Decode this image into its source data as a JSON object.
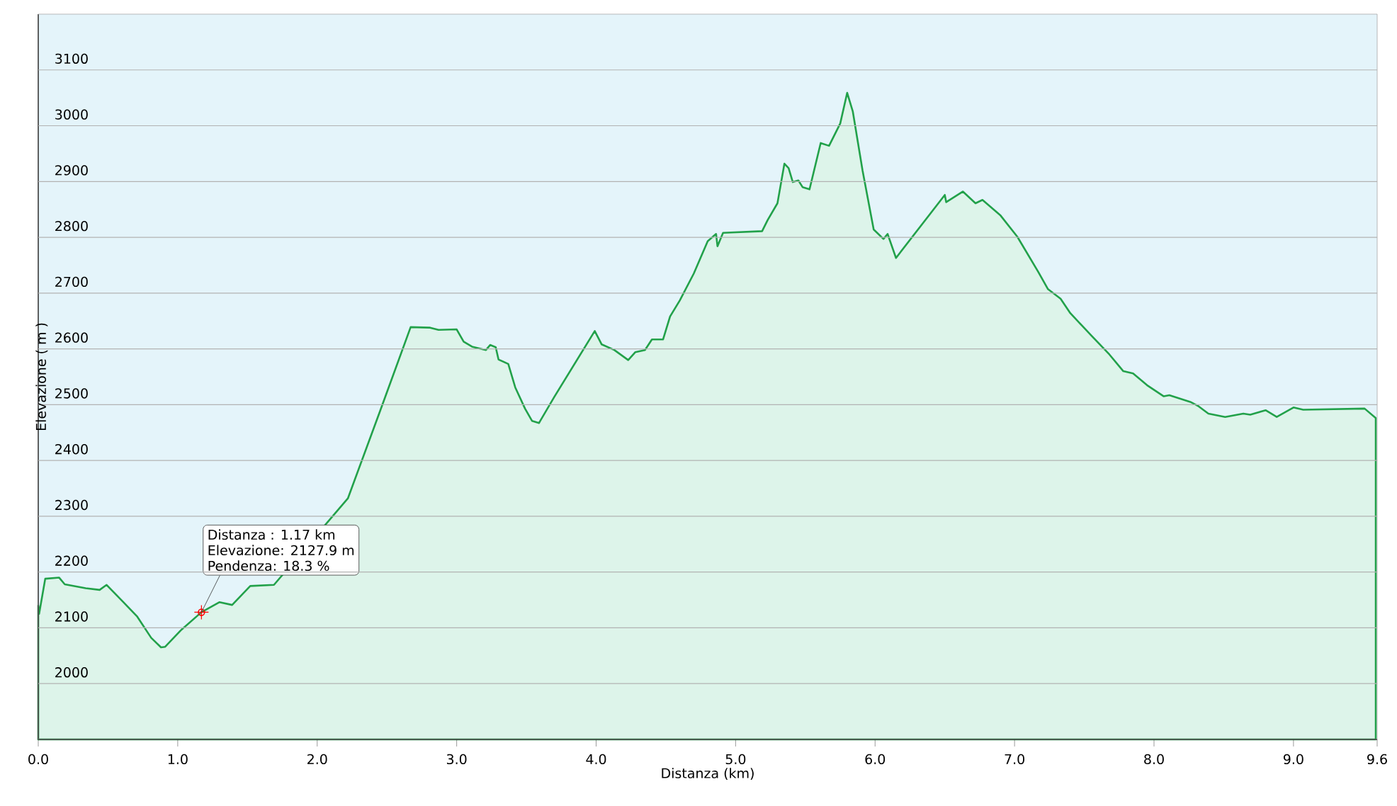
{
  "chart_data": {
    "type": "area",
    "xlabel": "Distanza    (km)",
    "ylabel": "Elevazione ( m )",
    "x": [
      0.0,
      0.006,
      0.05,
      0.15,
      0.19,
      0.34,
      0.44,
      0.49,
      0.61,
      0.71,
      0.81,
      0.88,
      0.91,
      1.02,
      1.17,
      1.3,
      1.39,
      1.52,
      1.69,
      2.22,
      2.45,
      2.67,
      2.81,
      2.87,
      3.0,
      3.05,
      3.11,
      3.21,
      3.24,
      3.28,
      3.3,
      3.37,
      3.42,
      3.49,
      3.54,
      3.59,
      3.7,
      3.99,
      4.04,
      4.13,
      4.23,
      4.28,
      4.35,
      4.4,
      4.48,
      4.53,
      4.6,
      4.7,
      4.8,
      4.86,
      4.87,
      4.91,
      5.19,
      5.23,
      5.3,
      5.35,
      5.38,
      5.41,
      5.45,
      5.48,
      5.53,
      5.61,
      5.67,
      5.75,
      5.8,
      5.84,
      5.91,
      5.99,
      6.06,
      6.09,
      6.15,
      6.5,
      6.51,
      6.63,
      6.72,
      6.77,
      6.9,
      7.02,
      7.17,
      7.24,
      7.33,
      7.4,
      7.55,
      7.68,
      7.78,
      7.85,
      7.95,
      8.07,
      8.11,
      8.26,
      8.32,
      8.39,
      8.51,
      8.64,
      8.69,
      8.8,
      8.88,
      9.0,
      9.07,
      9.51,
      9.59
    ],
    "values": [
      2140,
      2125,
      2188,
      2190,
      2178,
      2171,
      2168,
      2177,
      2146,
      2120,
      2082,
      2065,
      2066,
      2095,
      2128,
      2146,
      2141,
      2175,
      2177,
      2332,
      2488,
      2639,
      2638,
      2634,
      2635,
      2613,
      2604,
      2598,
      2607,
      2603,
      2581,
      2573,
      2531,
      2493,
      2471,
      2467,
      2514,
      2632,
      2608,
      2598,
      2580,
      2594,
      2598,
      2617,
      2617,
      2658,
      2687,
      2735,
      2793,
      2806,
      2784,
      2808,
      2811,
      2831,
      2861,
      2932,
      2924,
      2899,
      2902,
      2890,
      2886,
      2969,
      2964,
      3004,
      3059,
      3026,
      2920,
      2814,
      2797,
      2806,
      2763,
      2876,
      2863,
      2882,
      2861,
      2867,
      2839,
      2801,
      2738,
      2707,
      2690,
      2664,
      2624,
      2590,
      2560,
      2556,
      2535,
      2515,
      2517,
      2505,
      2497,
      2484,
      2478,
      2484,
      2482,
      2490,
      2478,
      2495,
      2491,
      2493,
      2476
    ],
    "color": "#22a14a",
    "xlim": [
      0,
      9.6
    ],
    "xticks": [
      {
        "value": 0,
        "label": "0.0"
      },
      {
        "value": 1,
        "label": "1.0"
      },
      {
        "value": 2,
        "label": "2.0"
      },
      {
        "value": 3,
        "label": "3.0"
      },
      {
        "value": 4,
        "label": "4.0"
      },
      {
        "value": 5,
        "label": "5.0"
      },
      {
        "value": 6,
        "label": "6.0"
      },
      {
        "value": 7,
        "label": "7.0"
      },
      {
        "value": 8,
        "label": "8.0"
      },
      {
        "value": 9,
        "label": "9.0"
      },
      9.6
    ],
    "ylim": [
      1900,
      3200
    ],
    "yticks": [
      2000,
      2100,
      2200,
      2300,
      2400,
      2500,
      2600,
      2700,
      2800,
      2900,
      3000,
      3100
    ],
    "grid": "y",
    "marker": "none",
    "annotations": [
      "Distanza  : 1.17 km",
      "Elevazione: 2127.9 m",
      {
        "text": "Pendenza: 18.3 %",
        "x": 1.17,
        "y": 2127.9
      }
    ]
  }
}
